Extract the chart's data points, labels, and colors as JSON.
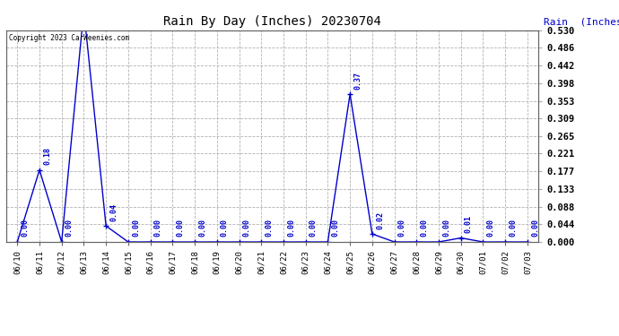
{
  "title": "Rain By Day (Inches) 20230704",
  "ylabel_right": "Rain  (Inches)",
  "copyright": "Copyright 2023 CarWeenies.com",
  "line_color": "#0000cc",
  "background_color": "#ffffff",
  "grid_color": "#aaaaaa",
  "dates": [
    "06/10",
    "06/11",
    "06/12",
    "06/13",
    "06/14",
    "06/15",
    "06/16",
    "06/17",
    "06/18",
    "06/19",
    "06/20",
    "06/21",
    "06/22",
    "06/23",
    "06/24",
    "06/25",
    "06/26",
    "06/27",
    "06/28",
    "06/29",
    "06/30",
    "07/01",
    "07/02",
    "07/03"
  ],
  "values": [
    0.0,
    0.18,
    0.0,
    0.58,
    0.04,
    0.0,
    0.0,
    0.0,
    0.0,
    0.0,
    0.0,
    0.0,
    0.0,
    0.0,
    0.0,
    0.37,
    0.02,
    0.0,
    0.0,
    0.0,
    0.01,
    0.0,
    0.0,
    0.0
  ],
  "ylim": [
    0.0,
    0.53
  ],
  "yticks": [
    0.0,
    0.044,
    0.088,
    0.133,
    0.177,
    0.221,
    0.265,
    0.309,
    0.353,
    0.398,
    0.442,
    0.486,
    0.53
  ]
}
